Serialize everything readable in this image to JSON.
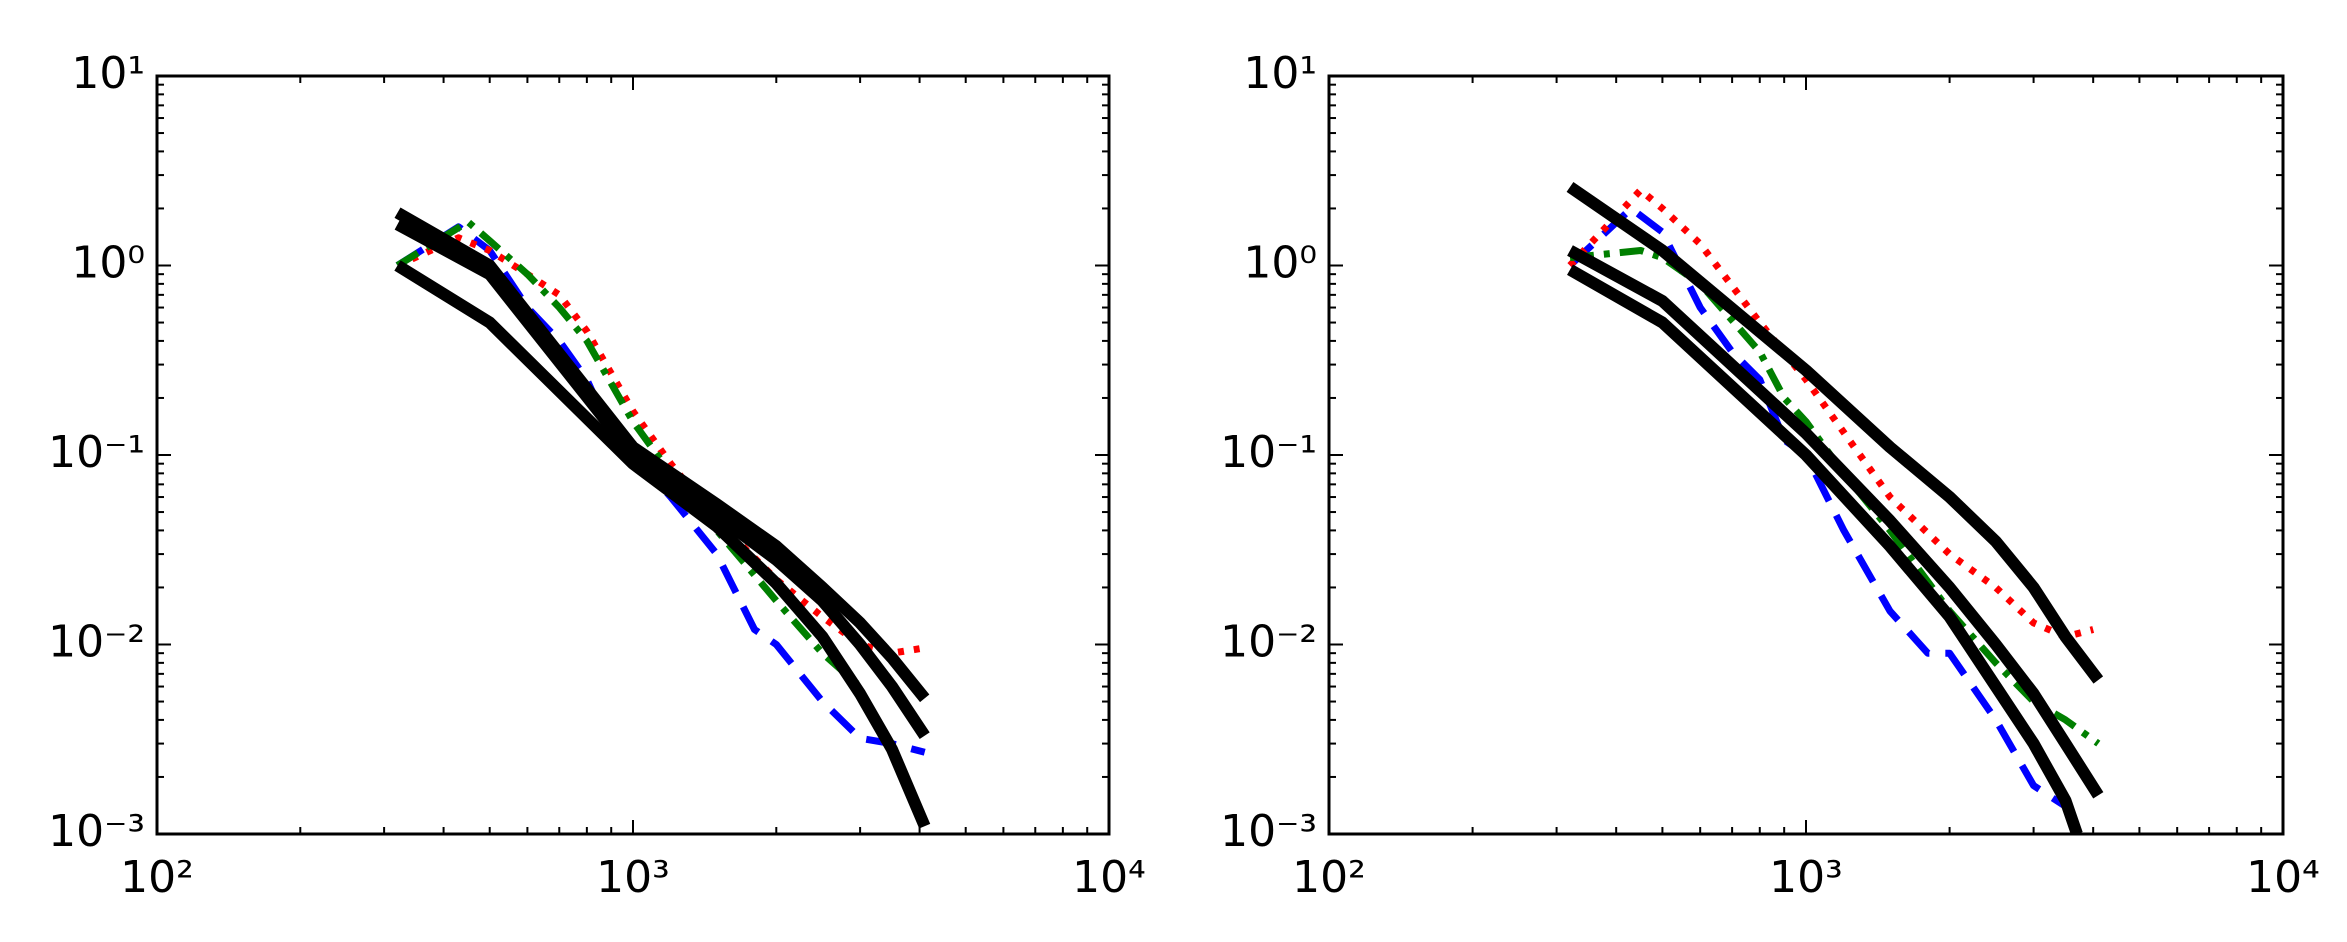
{
  "chart_data": [
    {
      "type": "line",
      "xscale": "log",
      "yscale": "log",
      "minor_ticks": true,
      "xlim": [
        100,
        10000
      ],
      "xticks": [
        {
          "value": 100,
          "label": "10²"
        },
        {
          "value": 1000,
          "label": "10³"
        },
        {
          "value": 10000,
          "label": "10⁴"
        }
      ],
      "ylim": [
        0.001,
        10
      ],
      "yticks": [
        {
          "value": 0.001,
          "label": "10⁻³"
        },
        {
          "value": 0.01,
          "label": "10⁻²"
        },
        {
          "value": 0.1,
          "label": "10⁻¹"
        },
        {
          "value": 1,
          "label": "10⁰"
        },
        {
          "value": 10,
          "label": "10¹"
        }
      ],
      "series": [
        {
          "color": "#0000ff",
          "style": "dashed",
          "x": [
            320,
            430,
            500,
            600,
            700,
            800,
            900,
            1000,
            1200,
            1500,
            1800,
            2000,
            2500,
            3000,
            3500,
            4100
          ],
          "values": [
            1.0,
            1.6,
            1.2,
            0.6,
            0.4,
            0.25,
            0.13,
            0.1,
            0.06,
            0.03,
            0.012,
            0.01,
            0.005,
            0.0032,
            0.003,
            0.0027
          ]
        },
        {
          "color": "#ff0000",
          "style": "dotted",
          "x": [
            320,
            430,
            500,
            600,
            700,
            800,
            1000,
            1200,
            1500,
            2000,
            2500,
            3000,
            3500,
            4000
          ],
          "values": [
            1.0,
            1.4,
            1.2,
            0.9,
            0.7,
            0.45,
            0.17,
            0.09,
            0.045,
            0.022,
            0.014,
            0.01,
            0.009,
            0.0095
          ]
        },
        {
          "color": "#007f00",
          "style": "dashdot",
          "x": [
            320,
            450,
            500,
            600,
            700,
            800,
            1000,
            1200,
            1500,
            2000,
            2500,
            3000
          ],
          "values": [
            1.0,
            1.7,
            1.35,
            0.9,
            0.6,
            0.4,
            0.15,
            0.08,
            0.04,
            0.017,
            0.009,
            0.006
          ]
        },
        {
          "color": "#000000",
          "style": "solid",
          "x": [
            320,
            500,
            1000,
            1500,
            2000,
            2500,
            3000,
            3500,
            4100
          ],
          "values": [
            1.9,
            1.0,
            0.11,
            0.055,
            0.033,
            0.02,
            0.013,
            0.0085,
            0.0052
          ]
        },
        {
          "color": "#000000",
          "style": "solid",
          "x": [
            320,
            500,
            1000,
            1500,
            2000,
            2500,
            3000,
            3500,
            4100
          ],
          "values": [
            1.65,
            0.9,
            0.1,
            0.048,
            0.028,
            0.017,
            0.01,
            0.006,
            0.0033
          ]
        },
        {
          "color": "#000000",
          "style": "solid",
          "x": [
            320,
            500,
            1000,
            1500,
            2000,
            2500,
            3000,
            3500,
            4100
          ],
          "values": [
            1.0,
            0.5,
            0.09,
            0.042,
            0.021,
            0.011,
            0.0055,
            0.0028,
            0.0011
          ]
        }
      ]
    },
    {
      "type": "line",
      "xscale": "log",
      "yscale": "log",
      "minor_ticks": true,
      "xlim": [
        100,
        10000
      ],
      "xticks": [
        {
          "value": 100,
          "label": "10²"
        },
        {
          "value": 1000,
          "label": "10³"
        },
        {
          "value": 10000,
          "label": "10⁴"
        }
      ],
      "ylim": [
        0.001,
        10
      ],
      "yticks": [
        {
          "value": 0.001,
          "label": "10⁻³"
        },
        {
          "value": 0.01,
          "label": "10⁻²"
        },
        {
          "value": 0.1,
          "label": "10⁻¹"
        },
        {
          "value": 1,
          "label": "10⁰"
        },
        {
          "value": 10,
          "label": "10¹"
        }
      ],
      "series": [
        {
          "color": "#0000ff",
          "style": "dashed",
          "x": [
            320,
            430,
            500,
            600,
            700,
            800,
            900,
            1000,
            1200,
            1500,
            1800,
            2000,
            2500,
            3000,
            3500
          ],
          "values": [
            1.0,
            2.0,
            1.5,
            0.6,
            0.35,
            0.25,
            0.12,
            0.1,
            0.04,
            0.015,
            0.009,
            0.009,
            0.004,
            0.0018,
            0.0014
          ]
        },
        {
          "color": "#ff0000",
          "style": "dotted",
          "x": [
            320,
            450,
            500,
            600,
            800,
            1000,
            1500,
            2000,
            2500,
            3000,
            3500,
            4000
          ],
          "values": [
            1.0,
            2.5,
            2.0,
            1.3,
            0.5,
            0.25,
            0.06,
            0.03,
            0.02,
            0.013,
            0.011,
            0.012
          ]
        },
        {
          "color": "#007f00",
          "style": "dashdot",
          "x": [
            320,
            450,
            500,
            600,
            800,
            900,
            1000,
            1200,
            1500,
            2000,
            2500,
            3000,
            3500,
            4100
          ],
          "values": [
            1.1,
            1.2,
            1.1,
            0.8,
            0.35,
            0.2,
            0.15,
            0.08,
            0.04,
            0.015,
            0.008,
            0.005,
            0.004,
            0.003
          ]
        },
        {
          "color": "#000000",
          "style": "solid",
          "x": [
            320,
            500,
            1000,
            1500,
            2000,
            2500,
            3000,
            3500,
            4100
          ],
          "values": [
            2.6,
            1.2,
            0.28,
            0.11,
            0.06,
            0.035,
            0.02,
            0.011,
            0.0065
          ]
        },
        {
          "color": "#000000",
          "style": "solid",
          "x": [
            320,
            500,
            1000,
            1500,
            2000,
            2500,
            3000,
            3500,
            4100
          ],
          "values": [
            1.2,
            0.65,
            0.13,
            0.045,
            0.02,
            0.01,
            0.0055,
            0.003,
            0.0016
          ]
        },
        {
          "color": "#000000",
          "style": "solid",
          "x": [
            320,
            500,
            1000,
            1500,
            2000,
            2500,
            3000,
            3500,
            3700
          ],
          "values": [
            0.95,
            0.5,
            0.1,
            0.033,
            0.014,
            0.006,
            0.003,
            0.0015,
            0.001
          ]
        }
      ]
    }
  ]
}
